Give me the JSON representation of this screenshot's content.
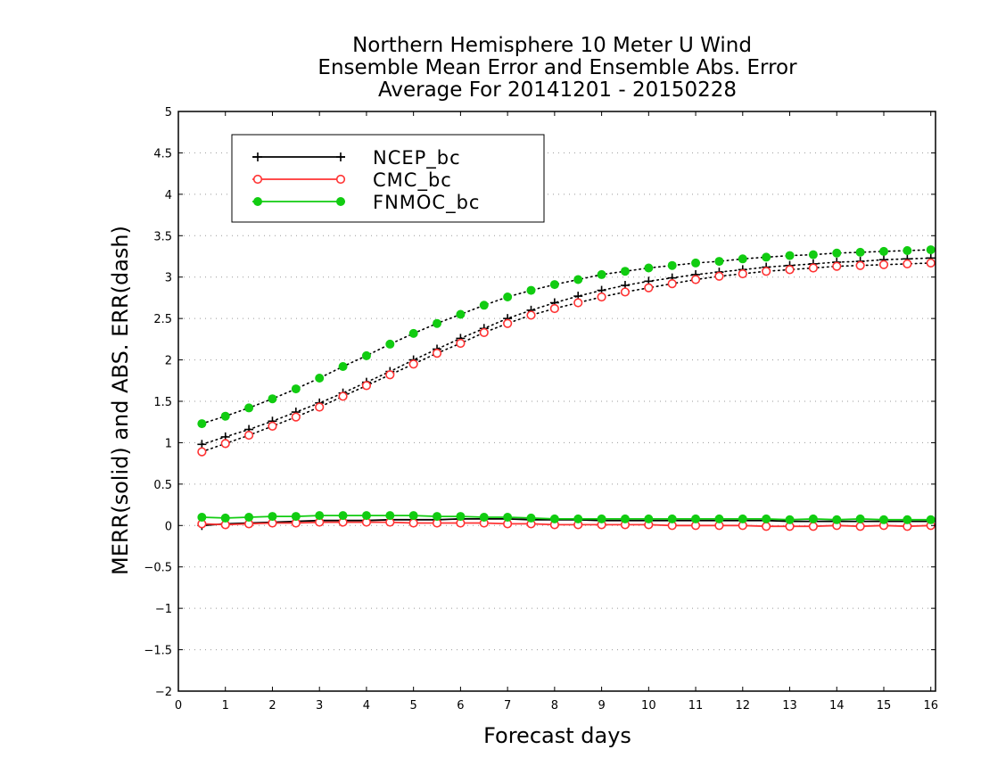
{
  "chart_data": {
    "type": "line",
    "title_lines": [
      "Northern Hemisphere 10 Meter U Wind",
      "Ensemble Mean Error and Ensemble Abs. Error",
      "Average For 20141201 - 20150228"
    ],
    "xlabel": "Forecast days",
    "ylabel": "MERR(solid) and ABS. ERR(dash)",
    "xlim": [
      0,
      16.1
    ],
    "ylim": [
      -2,
      5
    ],
    "x_ticks": [
      0,
      1,
      2,
      3,
      4,
      5,
      6,
      7,
      8,
      9,
      10,
      11,
      12,
      13,
      14,
      15,
      16
    ],
    "y_ticks": [
      -2,
      -1.5,
      -1,
      -0.5,
      0,
      0.5,
      1,
      1.5,
      2,
      2.5,
      3,
      3.5,
      4,
      4.5,
      5
    ],
    "grid": true,
    "legend_position": "top-left",
    "x": [
      0.5,
      1,
      1.5,
      2,
      2.5,
      3,
      3.5,
      4,
      4.5,
      5,
      5.5,
      6,
      6.5,
      7,
      7.5,
      8,
      8.5,
      9,
      9.5,
      10,
      10.5,
      11,
      11.5,
      12,
      12.5,
      13,
      13.5,
      14,
      14.5,
      15,
      15.5,
      16
    ],
    "series": [
      {
        "name": "NCEP_bc",
        "color": "#000000",
        "marker": "plus",
        "merr": [
          0.0,
          0.02,
          0.03,
          0.04,
          0.05,
          0.06,
          0.06,
          0.06,
          0.07,
          0.07,
          0.07,
          0.08,
          0.08,
          0.08,
          0.07,
          0.07,
          0.07,
          0.06,
          0.06,
          0.06,
          0.06,
          0.06,
          0.06,
          0.06,
          0.06,
          0.05,
          0.05,
          0.05,
          0.05,
          0.05,
          0.05,
          0.05
        ],
        "abs_err": [
          0.98,
          1.07,
          1.16,
          1.26,
          1.37,
          1.48,
          1.6,
          1.73,
          1.86,
          2.0,
          2.13,
          2.26,
          2.38,
          2.5,
          2.6,
          2.69,
          2.77,
          2.84,
          2.9,
          2.95,
          2.99,
          3.03,
          3.06,
          3.09,
          3.12,
          3.14,
          3.16,
          3.18,
          3.19,
          3.21,
          3.22,
          3.23
        ]
      },
      {
        "name": "CMC_bc",
        "color": "#ff3333",
        "marker": "open-circle",
        "merr": [
          0.02,
          0.01,
          0.02,
          0.03,
          0.03,
          0.04,
          0.04,
          0.04,
          0.04,
          0.03,
          0.03,
          0.03,
          0.03,
          0.02,
          0.02,
          0.01,
          0.01,
          0.01,
          0.01,
          0.01,
          0.0,
          0.0,
          0.0,
          0.0,
          -0.01,
          -0.01,
          -0.01,
          0.0,
          -0.01,
          0.0,
          -0.01,
          0.0
        ],
        "abs_err": [
          0.89,
          0.99,
          1.09,
          1.2,
          1.31,
          1.43,
          1.56,
          1.69,
          1.82,
          1.95,
          2.08,
          2.2,
          2.33,
          2.44,
          2.54,
          2.62,
          2.69,
          2.76,
          2.82,
          2.87,
          2.92,
          2.97,
          3.01,
          3.04,
          3.07,
          3.09,
          3.11,
          3.13,
          3.14,
          3.15,
          3.16,
          3.17
        ]
      },
      {
        "name": "FNMOC_bc",
        "color": "#11cc11",
        "marker": "filled-circle",
        "merr": [
          0.1,
          0.09,
          0.1,
          0.11,
          0.11,
          0.12,
          0.12,
          0.12,
          0.12,
          0.12,
          0.11,
          0.11,
          0.1,
          0.1,
          0.09,
          0.08,
          0.08,
          0.08,
          0.08,
          0.08,
          0.08,
          0.08,
          0.08,
          0.08,
          0.08,
          0.07,
          0.08,
          0.07,
          0.08,
          0.07,
          0.07,
          0.07
        ],
        "abs_err": [
          1.23,
          1.32,
          1.42,
          1.53,
          1.65,
          1.78,
          1.92,
          2.05,
          2.19,
          2.32,
          2.44,
          2.55,
          2.66,
          2.76,
          2.84,
          2.91,
          2.97,
          3.03,
          3.07,
          3.11,
          3.14,
          3.17,
          3.19,
          3.22,
          3.24,
          3.26,
          3.27,
          3.29,
          3.3,
          3.31,
          3.32,
          3.33
        ]
      }
    ]
  }
}
